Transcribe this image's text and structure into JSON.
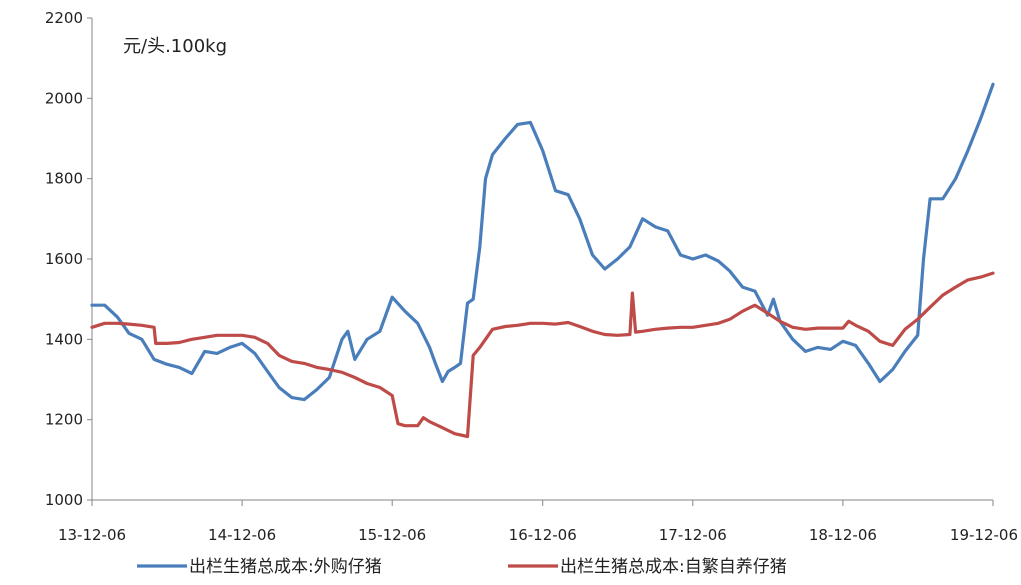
{
  "chart_data": {
    "type": "line",
    "title": "",
    "unit_label": "元/头.100kg",
    "xlabel": "",
    "ylabel": "",
    "ylim": [
      1000,
      2200
    ],
    "yticks": [
      1000,
      1200,
      1400,
      1600,
      1800,
      2000,
      2200
    ],
    "xlim": [
      "2013-12-06",
      "2019-12-06"
    ],
    "xticks": [
      {
        "date": "2013-12-06",
        "label": "13-12-06"
      },
      {
        "date": "2014-12-06",
        "label": "14-12-06"
      },
      {
        "date": "2015-12-06",
        "label": "15-12-06"
      },
      {
        "date": "2016-12-06",
        "label": "16-12-06"
      },
      {
        "date": "2017-12-06",
        "label": "17-12-06"
      },
      {
        "date": "2018-12-06",
        "label": "18-12-06"
      },
      {
        "date": "2019-12-06",
        "label": "19-12-06"
      }
    ],
    "grid": false,
    "legend_position": "bottom",
    "series": [
      {
        "name": "出栏生猪总成本:外购仔猪",
        "color": "#4a7ebb",
        "points": [
          [
            "2013-12-06",
            1485
          ],
          [
            "2014-01-06",
            1485
          ],
          [
            "2014-02-06",
            1455
          ],
          [
            "2014-03-06",
            1415
          ],
          [
            "2014-04-06",
            1400
          ],
          [
            "2014-05-06",
            1350
          ],
          [
            "2014-06-06",
            1338
          ],
          [
            "2014-07-06",
            1330
          ],
          [
            "2014-08-06",
            1315
          ],
          [
            "2014-09-06",
            1370
          ],
          [
            "2014-10-06",
            1365
          ],
          [
            "2014-11-06",
            1380
          ],
          [
            "2014-12-06",
            1390
          ],
          [
            "2015-01-06",
            1365
          ],
          [
            "2015-02-06",
            1320
          ],
          [
            "2015-03-06",
            1280
          ],
          [
            "2015-04-06",
            1255
          ],
          [
            "2015-05-06",
            1250
          ],
          [
            "2015-06-06",
            1275
          ],
          [
            "2015-07-06",
            1305
          ],
          [
            "2015-08-06",
            1400
          ],
          [
            "2015-08-20",
            1420
          ],
          [
            "2015-09-06",
            1350
          ],
          [
            "2015-10-06",
            1400
          ],
          [
            "2015-11-06",
            1420
          ],
          [
            "2015-12-06",
            1505
          ],
          [
            "2016-01-06",
            1470
          ],
          [
            "2016-02-06",
            1440
          ],
          [
            "2016-03-06",
            1380
          ],
          [
            "2016-03-20",
            1340
          ],
          [
            "2016-04-06",
            1295
          ],
          [
            "2016-04-20",
            1320
          ],
          [
            "2016-05-06",
            1330
          ],
          [
            "2016-05-20",
            1340
          ],
          [
            "2016-06-06",
            1490
          ],
          [
            "2016-06-20",
            1500
          ],
          [
            "2016-07-06",
            1630
          ],
          [
            "2016-07-20",
            1800
          ],
          [
            "2016-08-06",
            1860
          ],
          [
            "2016-09-06",
            1900
          ],
          [
            "2016-10-06",
            1935
          ],
          [
            "2016-11-06",
            1940
          ],
          [
            "2016-12-06",
            1870
          ],
          [
            "2017-01-06",
            1770
          ],
          [
            "2017-02-06",
            1760
          ],
          [
            "2017-03-06",
            1700
          ],
          [
            "2017-04-06",
            1610
          ],
          [
            "2017-05-06",
            1575
          ],
          [
            "2017-06-06",
            1600
          ],
          [
            "2017-07-06",
            1630
          ],
          [
            "2017-08-06",
            1700
          ],
          [
            "2017-09-06",
            1680
          ],
          [
            "2017-10-06",
            1670
          ],
          [
            "2017-11-06",
            1610
          ],
          [
            "2017-12-06",
            1600
          ],
          [
            "2018-01-06",
            1610
          ],
          [
            "2018-02-06",
            1595
          ],
          [
            "2018-03-06",
            1570
          ],
          [
            "2018-04-06",
            1530
          ],
          [
            "2018-05-06",
            1520
          ],
          [
            "2018-06-06",
            1460
          ],
          [
            "2018-06-20",
            1500
          ],
          [
            "2018-07-06",
            1445
          ],
          [
            "2018-08-06",
            1400
          ],
          [
            "2018-09-06",
            1370
          ],
          [
            "2018-10-06",
            1380
          ],
          [
            "2018-11-06",
            1375
          ],
          [
            "2018-12-06",
            1395
          ],
          [
            "2019-01-06",
            1385
          ],
          [
            "2019-02-06",
            1340
          ],
          [
            "2019-03-06",
            1295
          ],
          [
            "2019-04-06",
            1325
          ],
          [
            "2019-05-06",
            1370
          ],
          [
            "2019-06-06",
            1410
          ],
          [
            "2019-06-20",
            1600
          ],
          [
            "2019-07-06",
            1750
          ],
          [
            "2019-08-06",
            1750
          ],
          [
            "2019-09-06",
            1800
          ],
          [
            "2019-10-06",
            1870
          ],
          [
            "2019-11-06",
            1950
          ],
          [
            "2019-12-06",
            2035
          ]
        ]
      },
      {
        "name": "出栏生猪总成本:自繁自养仔猪",
        "color": "#be4b48",
        "points": [
          [
            "2013-12-06",
            1430
          ],
          [
            "2014-01-06",
            1440
          ],
          [
            "2014-02-06",
            1440
          ],
          [
            "2014-03-06",
            1438
          ],
          [
            "2014-04-06",
            1435
          ],
          [
            "2014-05-06",
            1430
          ],
          [
            "2014-05-10",
            1390
          ],
          [
            "2014-06-06",
            1390
          ],
          [
            "2014-07-06",
            1392
          ],
          [
            "2014-08-06",
            1400
          ],
          [
            "2014-09-06",
            1405
          ],
          [
            "2014-10-06",
            1410
          ],
          [
            "2014-11-06",
            1410
          ],
          [
            "2014-12-06",
            1410
          ],
          [
            "2015-01-06",
            1405
          ],
          [
            "2015-02-06",
            1390
          ],
          [
            "2015-03-06",
            1360
          ],
          [
            "2015-04-06",
            1345
          ],
          [
            "2015-05-06",
            1340
          ],
          [
            "2015-06-06",
            1330
          ],
          [
            "2015-07-06",
            1325
          ],
          [
            "2015-08-06",
            1318
          ],
          [
            "2015-09-06",
            1305
          ],
          [
            "2015-10-06",
            1290
          ],
          [
            "2015-11-06",
            1280
          ],
          [
            "2015-12-06",
            1260
          ],
          [
            "2015-12-20",
            1190
          ],
          [
            "2016-01-06",
            1185
          ],
          [
            "2016-02-06",
            1185
          ],
          [
            "2016-02-20",
            1205
          ],
          [
            "2016-03-06",
            1195
          ],
          [
            "2016-04-06",
            1180
          ],
          [
            "2016-05-06",
            1165
          ],
          [
            "2016-06-06",
            1158
          ],
          [
            "2016-06-20",
            1360
          ],
          [
            "2016-07-06",
            1380
          ],
          [
            "2016-08-06",
            1425
          ],
          [
            "2016-09-06",
            1432
          ],
          [
            "2016-10-06",
            1435
          ],
          [
            "2016-11-06",
            1440
          ],
          [
            "2016-12-06",
            1440
          ],
          [
            "2017-01-06",
            1438
          ],
          [
            "2017-02-06",
            1442
          ],
          [
            "2017-03-06",
            1432
          ],
          [
            "2017-04-06",
            1420
          ],
          [
            "2017-05-06",
            1412
          ],
          [
            "2017-06-06",
            1410
          ],
          [
            "2017-07-06",
            1412
          ],
          [
            "2017-07-12",
            1515
          ],
          [
            "2017-07-20",
            1418
          ],
          [
            "2017-08-06",
            1420
          ],
          [
            "2017-09-06",
            1425
          ],
          [
            "2017-10-06",
            1428
          ],
          [
            "2017-11-06",
            1430
          ],
          [
            "2017-12-06",
            1430
          ],
          [
            "2018-01-06",
            1435
          ],
          [
            "2018-02-06",
            1440
          ],
          [
            "2018-03-06",
            1450
          ],
          [
            "2018-04-06",
            1470
          ],
          [
            "2018-05-06",
            1485
          ],
          [
            "2018-06-06",
            1465
          ],
          [
            "2018-07-06",
            1445
          ],
          [
            "2018-08-06",
            1430
          ],
          [
            "2018-09-06",
            1425
          ],
          [
            "2018-10-06",
            1428
          ],
          [
            "2018-11-06",
            1428
          ],
          [
            "2018-12-06",
            1428
          ],
          [
            "2018-12-20",
            1445
          ],
          [
            "2019-01-06",
            1435
          ],
          [
            "2019-02-06",
            1420
          ],
          [
            "2019-03-06",
            1395
          ],
          [
            "2019-04-06",
            1385
          ],
          [
            "2019-05-06",
            1425
          ],
          [
            "2019-06-06",
            1450
          ],
          [
            "2019-07-06",
            1480
          ],
          [
            "2019-08-06",
            1510
          ],
          [
            "2019-09-06",
            1530
          ],
          [
            "2019-10-06",
            1548
          ],
          [
            "2019-11-06",
            1555
          ],
          [
            "2019-12-06",
            1565
          ]
        ]
      }
    ]
  }
}
